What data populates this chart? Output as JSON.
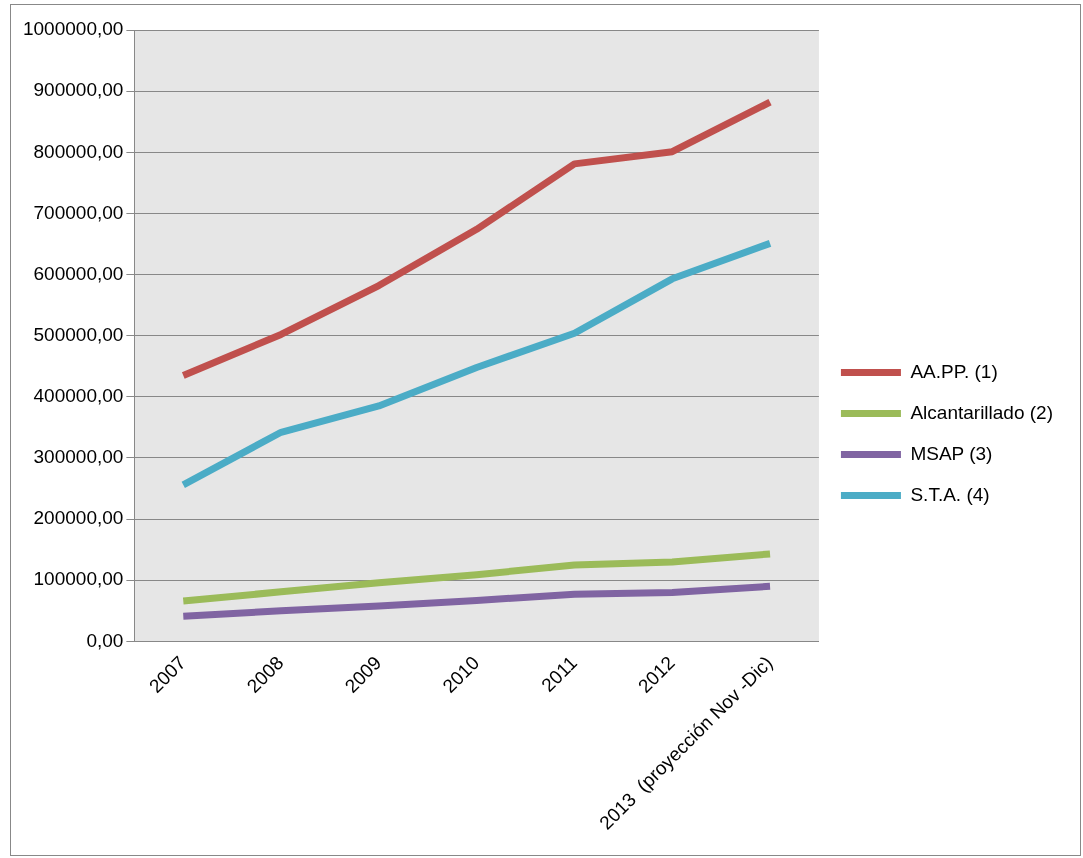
{
  "chart_data": {
    "type": "line",
    "categories": [
      "2007",
      "2008",
      "2009",
      "2010",
      "2011",
      "2012",
      "2013  (proyección Nov -Dic)"
    ],
    "series": [
      {
        "name": "AA.PP. (1)",
        "color": "#c0504d",
        "values": [
          435000,
          502000,
          582000,
          674000,
          781000,
          801000,
          882000
        ]
      },
      {
        "name": "Alcantarillado (2)",
        "color": "#9bbb59",
        "values": [
          66000,
          81000,
          96000,
          109000,
          125000,
          130000,
          143000
        ]
      },
      {
        "name": "MSAP (3)",
        "color": "#8064a2",
        "values": [
          41000,
          50000,
          58000,
          67000,
          77000,
          80000,
          90000
        ]
      },
      {
        "name": "S.T.A. (4)",
        "color": "#4bacc6",
        "values": [
          256000,
          342000,
          385000,
          448000,
          504000,
          593000,
          651000
        ]
      }
    ],
    "ylim": [
      0,
      1000000
    ],
    "yticks": [
      {
        "value": 0,
        "label": "0,00"
      },
      {
        "value": 100000,
        "label": "100000,00"
      },
      {
        "value": 200000,
        "label": "200000,00"
      },
      {
        "value": 300000,
        "label": "300000,00"
      },
      {
        "value": 400000,
        "label": "400000,00"
      },
      {
        "value": 500000,
        "label": "500000,00"
      },
      {
        "value": 600000,
        "label": "600000,00"
      },
      {
        "value": 700000,
        "label": "700000,00"
      },
      {
        "value": 800000,
        "label": "800000,00"
      },
      {
        "value": 900000,
        "label": "900000,00"
      },
      {
        "value": 1000000,
        "label": "1000000,00"
      }
    ],
    "grid": "y",
    "legend": "right",
    "marker": "none",
    "line_style": "solid"
  }
}
